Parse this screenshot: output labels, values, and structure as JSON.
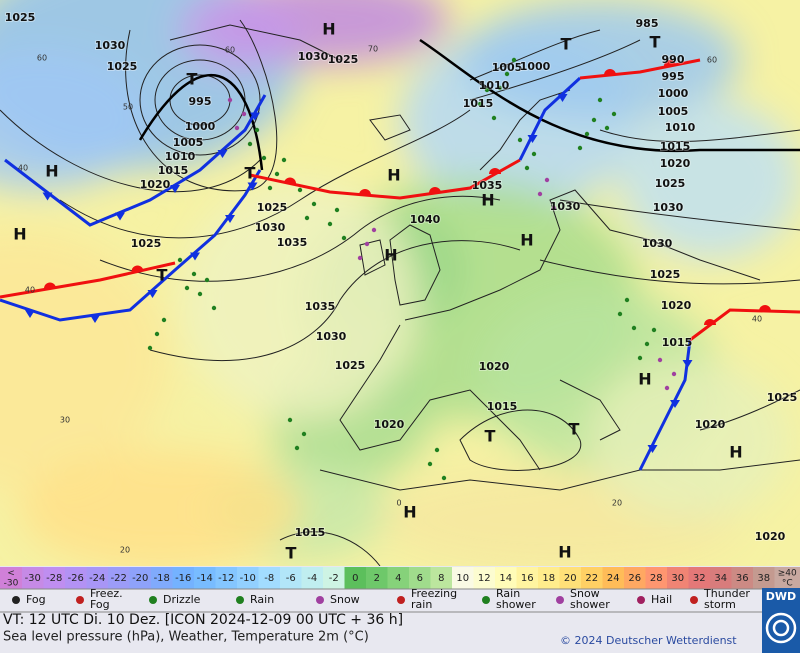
{
  "map": {
    "pressure_labels": [
      1025,
      1030,
      1025,
      995,
      1000,
      1005,
      1010,
      1015,
      1020,
      1030,
      1025,
      1010,
      1005,
      1000,
      985,
      990,
      995,
      1000,
      1005,
      1010,
      1015,
      1020,
      1025,
      1030,
      1030,
      1025,
      1020,
      1015,
      1015,
      1035,
      1040,
      1030,
      1025,
      1030,
      1035,
      1025,
      1035,
      1030,
      1025,
      1020,
      1015,
      1020,
      1020,
      1025,
      1020,
      1015
    ],
    "centers": [
      "H",
      "H",
      "H",
      "H",
      "H",
      "H",
      "H",
      "H",
      "H",
      "H",
      "H",
      "T",
      "T",
      "T",
      "T",
      "T",
      "T",
      "T",
      "T"
    ],
    "temperature_labels": [
      40,
      40,
      30,
      20,
      20,
      40,
      60,
      50,
      60,
      70,
      60,
      0
    ]
  },
  "legend": {
    "scale_low": [
      "<",
      "-30"
    ],
    "scale_values": [
      -30,
      -28,
      -26,
      -24,
      -22,
      -20,
      -18,
      -16,
      -14,
      -12,
      -10,
      -8,
      -6,
      -4,
      -2,
      0,
      2,
      4,
      6,
      8,
      10,
      12,
      14,
      16,
      18,
      20,
      22,
      24,
      26,
      28,
      30,
      32,
      34,
      36,
      38
    ],
    "scale_colors": [
      "#c68ae6",
      "#bf8ef0",
      "#b392f4",
      "#a896f6",
      "#9c9cf8",
      "#8ea2fa",
      "#80aafc",
      "#74b2ff",
      "#78bcff",
      "#84c6ff",
      "#92d0ff",
      "#a2dcff",
      "#b2e6f8",
      "#c0eef0",
      "#cef4e4",
      "#5cbf5c",
      "#6ec86a",
      "#86d27a",
      "#a0dc8c",
      "#bce69e",
      "#fafae4",
      "#fcfcd0",
      "#fffcb8",
      "#fff4a0",
      "#ffec8c",
      "#ffe078",
      "#ffd064",
      "#ffbc58",
      "#ffa862",
      "#ff9670",
      "#f08474",
      "#e47878",
      "#d87c7c",
      "#cc8a84",
      "#c49a90"
    ],
    "scale_high": [
      "≥40",
      "°C"
    ],
    "weather": [
      [
        "Fog"
      ],
      [
        "Freez.",
        "Fog"
      ],
      [
        "Drizzle"
      ],
      [
        "Rain"
      ],
      [
        "Snow"
      ],
      [
        "Freezing",
        "rain"
      ],
      [
        "Rain",
        "shower"
      ],
      [
        "Snow",
        "shower"
      ],
      [
        "Hail"
      ],
      [
        "Thunder",
        "storm"
      ]
    ]
  },
  "footer": {
    "valid_time": "VT: 12 UTC Di.  10 Dez. [ICON 2024-12-09  00 UTC + 36 h]",
    "subtitle": "Sea level pressure (hPa), Weather, Temperature 2m (°C)",
    "copyright": "© 2024 Deutscher Wetterdienst",
    "logo": "DWD"
  }
}
